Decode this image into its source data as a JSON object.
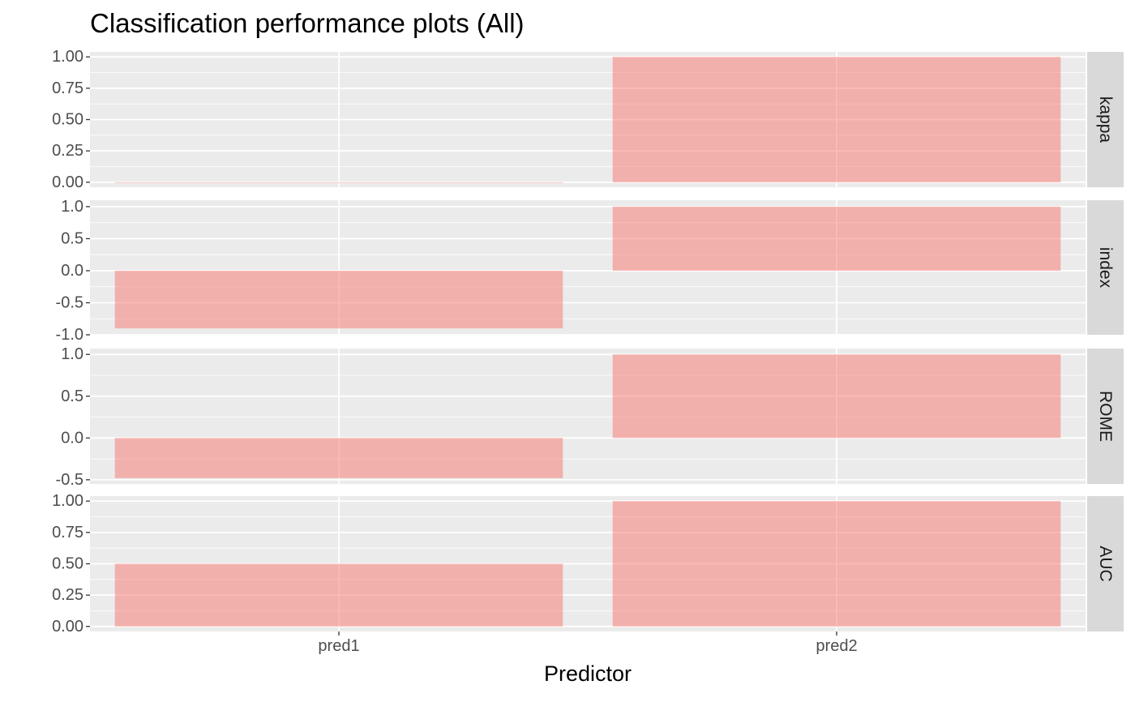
{
  "chart_data": {
    "type": "bar",
    "title": "Classification performance plots (All)",
    "xlabel": "Predictor",
    "ylabel": "",
    "categories": [
      "pred1",
      "pred2"
    ],
    "bar_color": "#F8766D",
    "bar_opacity": 0.5,
    "panel_background": "#EBEBEB",
    "strip_background": "#D9D9D9",
    "grid": true,
    "legend": "none",
    "facets": [
      {
        "strip": "kappa",
        "values": [
          0.0,
          1.0
        ],
        "ylim": [
          -0.04,
          1.04
        ],
        "ticks": [
          0,
          0.25,
          0.5,
          0.75,
          1.0
        ],
        "tick_labels": [
          "0.00",
          "0.25",
          "0.50",
          "0.75",
          "1.00"
        ]
      },
      {
        "strip": "index",
        "values": [
          -0.9,
          1.0
        ],
        "ylim": [
          -1.0,
          1.1
        ],
        "ticks": [
          -1.0,
          -0.5,
          0.0,
          0.5,
          1.0
        ],
        "tick_labels": [
          "-1.0",
          "-0.5",
          "0.0",
          "0.5",
          "1.0"
        ]
      },
      {
        "strip": "ROME",
        "values": [
          -0.48,
          1.0
        ],
        "ylim": [
          -0.55,
          1.07
        ],
        "ticks": [
          -0.5,
          0.0,
          0.5,
          1.0
        ],
        "tick_labels": [
          "-0.5",
          "0.0",
          "0.5",
          "1.0"
        ]
      },
      {
        "strip": "AUC",
        "values": [
          0.5,
          1.0
        ],
        "ylim": [
          -0.04,
          1.04
        ],
        "ticks": [
          0,
          0.25,
          0.5,
          0.75,
          1.0
        ],
        "tick_labels": [
          "0.00",
          "0.25",
          "0.50",
          "0.75",
          "1.00"
        ]
      }
    ]
  }
}
